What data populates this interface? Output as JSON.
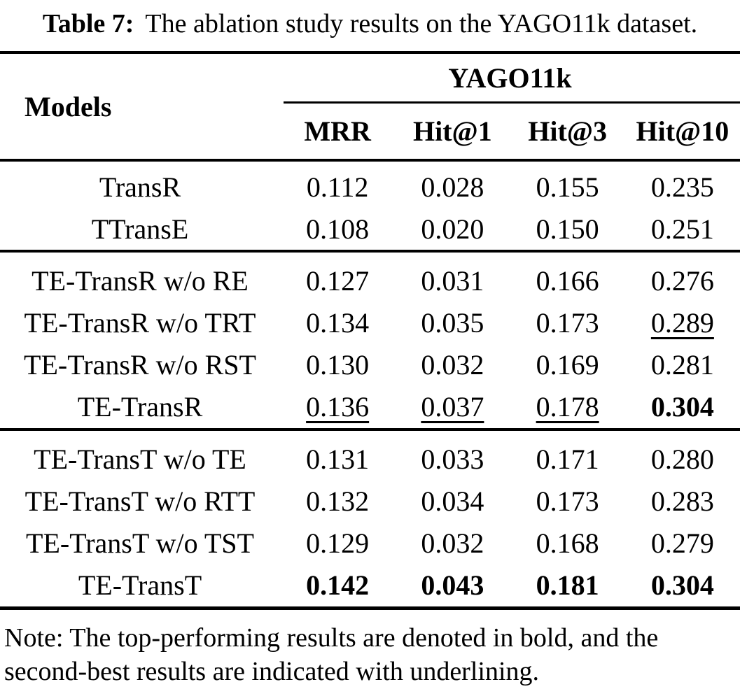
{
  "caption": {
    "label": "Table 7:",
    "text": "The ablation study results on the YAGO11k dataset."
  },
  "tbl": {
    "corner_header": "Models",
    "dataset_header": "YAGO11k",
    "metrics": [
      "MRR",
      "Hit@1",
      "Hit@3",
      "Hit@10"
    ],
    "groups": [
      {
        "rows": [
          {
            "model": "TransR",
            "values": [
              "0.112",
              "0.028",
              "0.155",
              "0.235"
            ]
          },
          {
            "model": "TTransE",
            "values": [
              "0.108",
              "0.020",
              "0.150",
              "0.251"
            ]
          }
        ]
      },
      {
        "rows": [
          {
            "model": "TE-TransR w/o RE",
            "values": [
              "0.127",
              "0.031",
              "0.166",
              "0.276"
            ]
          },
          {
            "model": "TE-TransR w/o TRT",
            "values": [
              "0.134",
              "0.035",
              "0.173",
              "0.289"
            ]
          },
          {
            "model": "TE-TransR w/o RST",
            "values": [
              "0.130",
              "0.032",
              "0.169",
              "0.281"
            ]
          },
          {
            "model": "TE-TransR",
            "values": [
              "0.136",
              "0.037",
              "0.178",
              "0.304"
            ]
          }
        ]
      },
      {
        "rows": [
          {
            "model": "TE-TransT w/o TE",
            "values": [
              "0.131",
              "0.033",
              "0.171",
              "0.280"
            ]
          },
          {
            "model": "TE-TransT w/o RTT",
            "values": [
              "0.132",
              "0.034",
              "0.173",
              "0.283"
            ]
          },
          {
            "model": "TE-TransT w/o TST",
            "values": [
              "0.129",
              "0.032",
              "0.168",
              "0.279"
            ]
          },
          {
            "model": "TE-TransT",
            "values": [
              "0.142",
              "0.043",
              "0.181",
              "0.304"
            ]
          }
        ]
      }
    ]
  },
  "note": {
    "line1": "Note: The top-performing results are denoted in bold, and the",
    "line2": "second-best results are indicated with underlining."
  },
  "colors": {
    "text": "#000000",
    "background": "#ffffff"
  }
}
